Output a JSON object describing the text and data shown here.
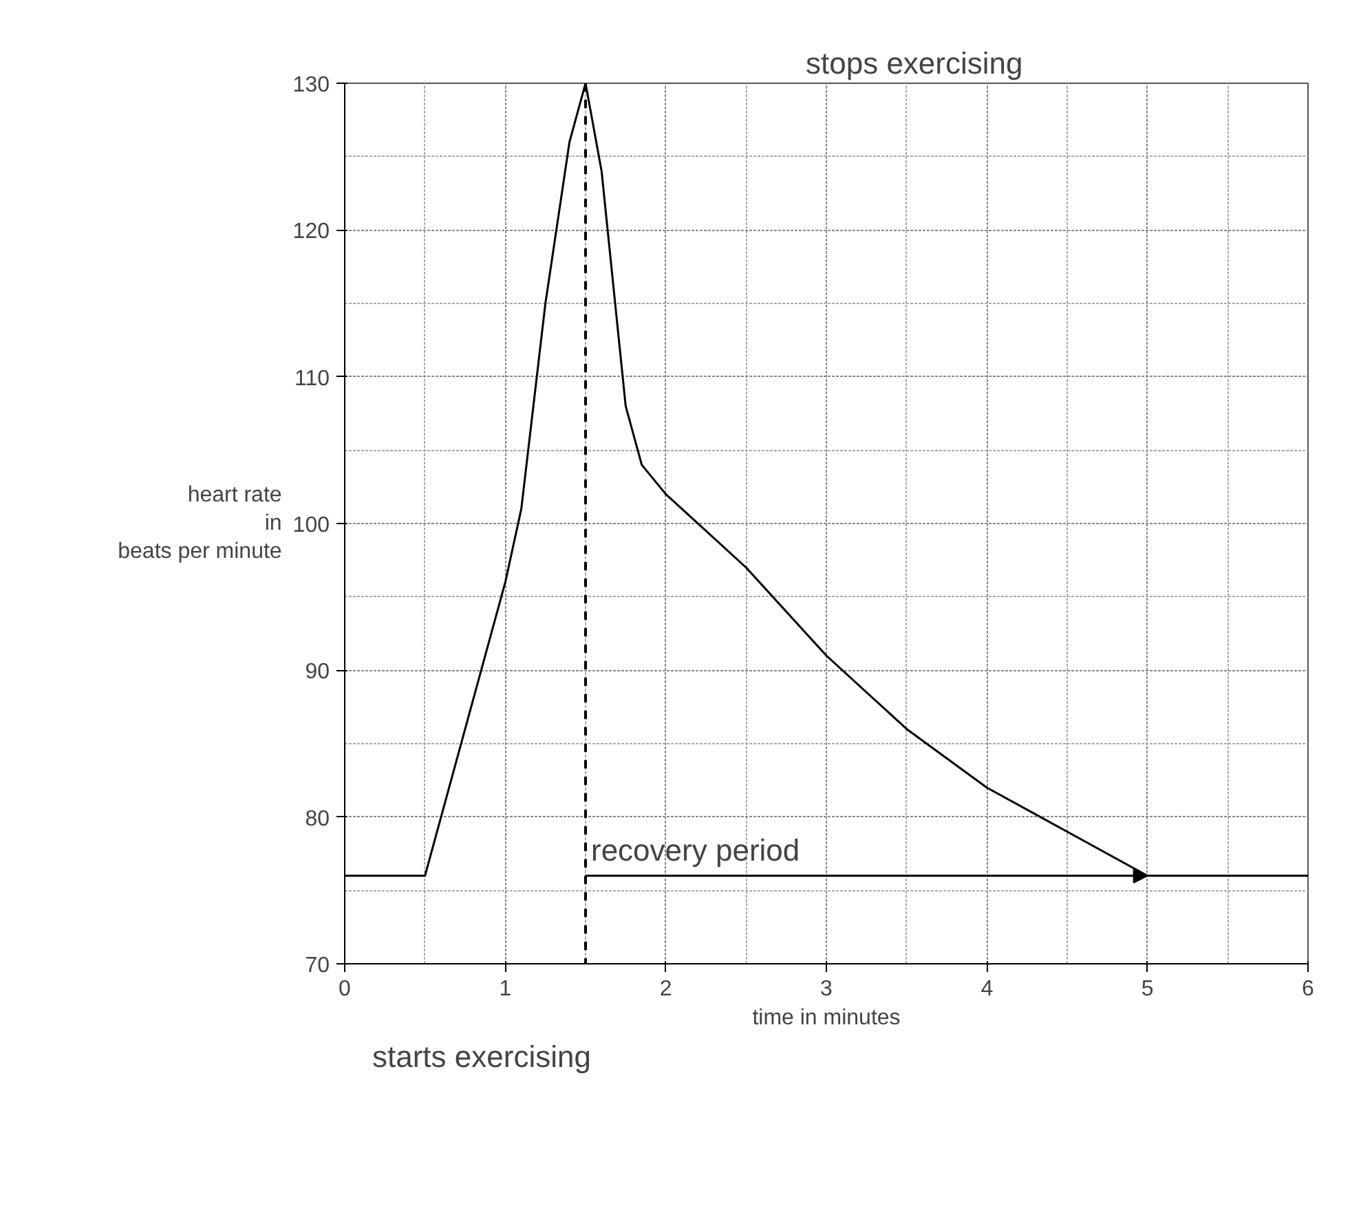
{
  "chart_data": {
    "type": "line",
    "xlabel": "time in minutes",
    "ylabel": "heart rate\nin\nbeats per minute",
    "x": [
      0,
      0.5,
      0.75,
      1.0,
      1.1,
      1.25,
      1.4,
      1.5,
      1.6,
      1.75,
      1.85,
      2.0,
      2.5,
      3.0,
      3.5,
      4.0,
      4.5,
      5.0,
      6.0
    ],
    "series": [
      {
        "color": "#000000",
        "values": [
          76,
          76,
          86,
          96,
          101,
          115,
          126,
          130,
          124,
          108,
          104,
          102,
          97,
          91,
          86,
          82,
          79,
          76,
          76
        ]
      }
    ],
    "xlim": [
      0,
      6
    ],
    "ylim": [
      70,
      130
    ],
    "xticks": [
      0,
      1,
      2,
      3,
      4,
      5,
      6
    ],
    "yticks": [
      70,
      80,
      90,
      100,
      110,
      120,
      130
    ],
    "grid": true,
    "line_style": "solid",
    "marker": "none",
    "ref_lines": [
      {
        "axis": "x",
        "value": 1.5,
        "label": null,
        "color": "#000000",
        "line_style": "dashed"
      }
    ],
    "annotations": [
      "stops exercising",
      "starts exercising",
      {
        "text": "recovery period",
        "x": 1.5,
        "y": 76
      }
    ]
  }
}
